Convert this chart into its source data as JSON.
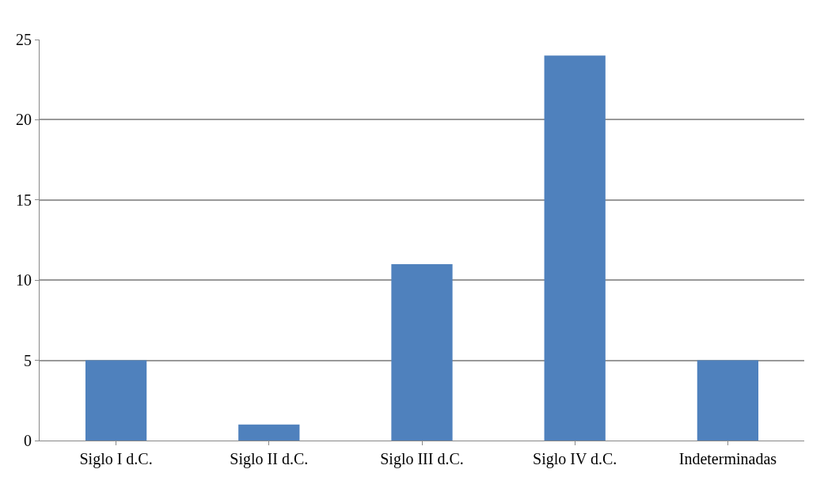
{
  "chart_data": {
    "type": "bar",
    "categories": [
      "Siglo I d.C.",
      "Siglo II d.C.",
      "Siglo III d.C.",
      "Siglo IV d.C.",
      "Indeterminadas"
    ],
    "values": [
      5,
      1,
      11,
      24,
      5
    ],
    "color": "#4f81bd",
    "ylim": [
      0,
      25
    ],
    "yticks": [
      0,
      5,
      10,
      15,
      20,
      25
    ],
    "grid": "y"
  }
}
